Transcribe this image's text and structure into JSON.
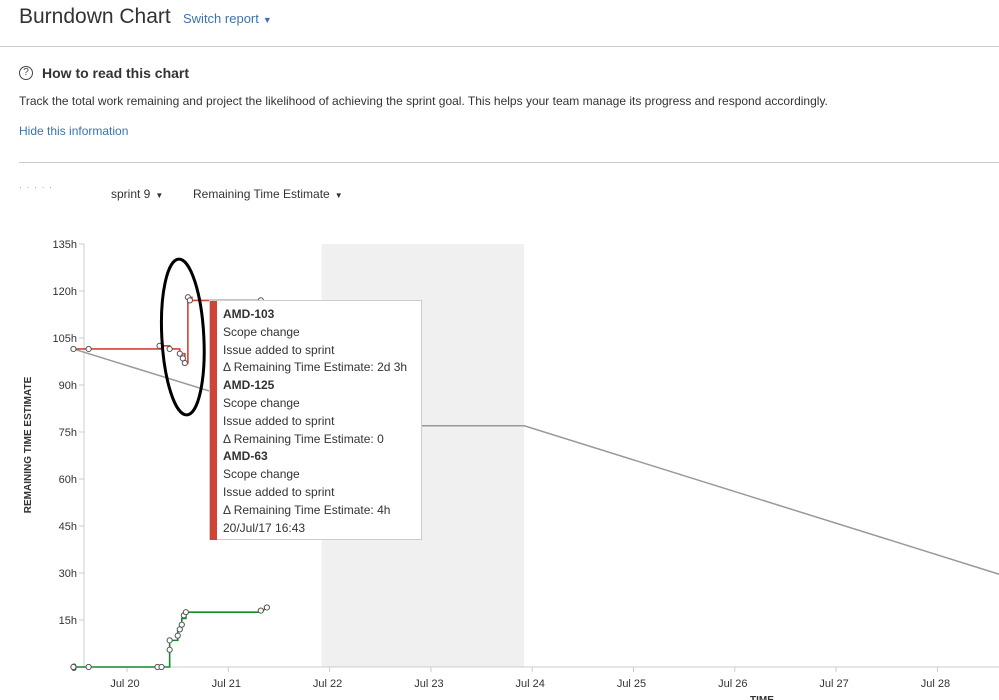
{
  "header": {
    "title": "Burndown Chart",
    "switch_report": "Switch report"
  },
  "help": {
    "title": "How to read this chart",
    "description": "Track the total work remaining and project the likelihood of achieving the sprint goal. This helps your team manage its progress and respond accordingly.",
    "hide_link": "Hide this information"
  },
  "filters": {
    "ghost_text": "· ·  ·  ·  ·",
    "sprint": "sprint 9",
    "estimate": "Remaining Time Estimate"
  },
  "chart_data": {
    "type": "line",
    "ylabel": "REMAINING TIME ESTIMATE",
    "xlabel": "TIME",
    "y_ticks": [
      "0",
      "15h",
      "30h",
      "45h",
      "60h",
      "75h",
      "90h",
      "105h",
      "120h",
      "135h"
    ],
    "ylim": [
      0,
      135
    ],
    "x_ticks": [
      "Jul 20",
      "Jul 21",
      "Jul 22",
      "Jul 23",
      "Jul 24",
      "Jul 25",
      "Jul 26",
      "Jul 27",
      "Jul 28"
    ],
    "xlim_days": [
      19.55,
      28.7
    ],
    "non_working_ranges": [
      [
        22.0,
        24.0
      ]
    ],
    "series": [
      {
        "role": "guideline",
        "color": "#999999",
        "points": [
          [
            19.55,
            101.5
          ],
          [
            22.0,
            77
          ],
          [
            24.0,
            77
          ],
          [
            28.7,
            29.5
          ]
        ]
      },
      {
        "role": "remaining",
        "color": "#d04437",
        "points": [
          [
            19.55,
            101.5
          ],
          [
            20.35,
            101.5
          ],
          [
            20.42,
            101.5
          ],
          [
            20.42,
            102.5
          ],
          [
            20.5,
            102.5
          ],
          [
            20.5,
            101.5
          ],
          [
            20.6,
            101.5
          ],
          [
            20.6,
            100
          ],
          [
            20.65,
            100
          ],
          [
            20.65,
            97
          ],
          [
            20.68,
            97
          ],
          [
            20.68,
            118
          ],
          [
            20.72,
            118
          ],
          [
            20.72,
            117
          ],
          [
            21.4,
            117
          ]
        ],
        "markers": [
          [
            19.55,
            101.5
          ],
          [
            19.7,
            101.5
          ],
          [
            20.4,
            102.5
          ],
          [
            20.5,
            101.5
          ],
          [
            20.6,
            100
          ],
          [
            20.63,
            98.5
          ],
          [
            20.65,
            97
          ],
          [
            20.68,
            118
          ],
          [
            20.7,
            117
          ],
          [
            21.4,
            117
          ]
        ]
      },
      {
        "role": "completed",
        "color": "#14892c",
        "points": [
          [
            19.55,
            0
          ],
          [
            20.38,
            0
          ],
          [
            20.5,
            0
          ],
          [
            20.5,
            8.5
          ],
          [
            20.58,
            8.5
          ],
          [
            20.58,
            12
          ],
          [
            20.62,
            12
          ],
          [
            20.62,
            15.5
          ],
          [
            20.66,
            15.5
          ],
          [
            20.66,
            17.5
          ],
          [
            21.4,
            17.5
          ],
          [
            21.46,
            19
          ]
        ],
        "markers": [
          [
            19.55,
            0
          ],
          [
            19.7,
            0
          ],
          [
            20.38,
            0
          ],
          [
            20.42,
            0
          ],
          [
            20.5,
            5.5
          ],
          [
            20.5,
            8.5
          ],
          [
            20.58,
            10
          ],
          [
            20.6,
            12
          ],
          [
            20.62,
            13.5
          ],
          [
            20.64,
            16.5
          ],
          [
            20.66,
            17.5
          ],
          [
            21.4,
            18
          ],
          [
            21.46,
            19
          ]
        ]
      }
    ],
    "tooltip": {
      "entries": [
        {
          "key": "AMD-103",
          "type": "Scope change",
          "event": "Issue added to sprint",
          "delta": "Δ Remaining Time Estimate: 2d 3h"
        },
        {
          "key": "AMD-125",
          "type": "Scope change",
          "event": "Issue added to sprint",
          "delta": "Δ Remaining Time Estimate: 0"
        },
        {
          "key": "AMD-63",
          "type": "Scope change",
          "event": "Issue added to sprint",
          "delta": "Δ Remaining Time Estimate: 4h"
        }
      ],
      "timestamp": "20/Jul/17 16:43",
      "accent": "#d04437"
    }
  },
  "colors": {
    "link": "#3b73af",
    "guideline": "#999999",
    "remaining": "#d04437",
    "completed": "#14892c",
    "non_working": "#f0f0f0",
    "annotation": "#000000"
  }
}
